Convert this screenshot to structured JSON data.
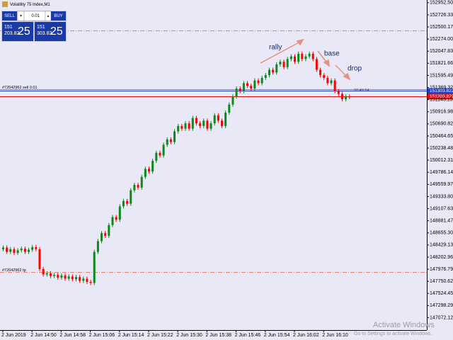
{
  "chart_data": {
    "type": "candlestick",
    "title": "Volatility 75 Index,M1",
    "categories": [
      "2 Jun 2019",
      null,
      null,
      null,
      null,
      null,
      null,
      null,
      "2 Jun 14:50",
      null,
      null,
      null,
      null,
      null,
      null,
      null,
      "2 Jun 14:58",
      null,
      null,
      null,
      null,
      null,
      null,
      null,
      "2 Jun 15:06",
      null,
      null,
      null,
      null,
      null,
      null,
      null,
      "2 Jun 15:14",
      null,
      null,
      null,
      null,
      null,
      null,
      null,
      "2 Jun 15:22",
      null,
      null,
      null,
      null,
      null,
      null,
      null,
      "2 Jun 15:30",
      null,
      null,
      null,
      null,
      null,
      null,
      null,
      "2 Jun 15:38",
      null,
      null,
      null,
      null,
      null,
      null,
      null,
      "2 Jun 15:46",
      null,
      null,
      null,
      null,
      null,
      null,
      null,
      "2 Jun 15:54",
      null,
      null,
      null,
      null,
      null,
      null,
      null,
      "2 Jun 16:02",
      null,
      null,
      null,
      null,
      null,
      null,
      null,
      "2 Jun 16:10",
      null,
      null,
      null,
      null,
      null,
      null,
      null
    ],
    "open": [
      148350,
      148380,
      148300,
      148350,
      148280,
      148330,
      148360,
      148300,
      148340,
      148390,
      148350,
      147980,
      147880,
      147900,
      147850,
      147870,
      147820,
      147860,
      147800,
      147840,
      147790,
      147830,
      147760,
      147800,
      147740,
      147720,
      148300,
      148500,
      148650,
      148600,
      148800,
      148950,
      148900,
      149150,
      149250,
      149200,
      149450,
      149550,
      149500,
      149700,
      149850,
      149800,
      150000,
      150150,
      150100,
      150300,
      150400,
      150350,
      150550,
      150650,
      150600,
      150700,
      150600,
      150800,
      150700,
      150650,
      150750,
      150600,
      150700,
      150850,
      150750,
      150650,
      150900,
      151050,
      151200,
      151350,
      151300,
      151450,
      151400,
      151350,
      151500,
      151450,
      151550,
      151600,
      151700,
      151650,
      151800,
      151850,
      151750,
      151900,
      151950,
      151850,
      152000,
      151900,
      151950,
      152000,
      151900,
      151700,
      151600,
      151550,
      151450,
      151500,
      151300,
      151250,
      151150,
      151200
    ],
    "high": [
      148420,
      148420,
      148390,
      148390,
      148370,
      148400,
      148400,
      148380,
      148430,
      148430,
      148390,
      148020,
      147940,
      147940,
      147910,
      147910,
      147900,
      147900,
      147880,
      147880,
      147870,
      147870,
      147840,
      147840,
      147780,
      148340,
      148540,
      148690,
      148690,
      148840,
      148990,
      148990,
      149190,
      149290,
      149290,
      149490,
      149590,
      149590,
      149740,
      149890,
      149890,
      150040,
      150190,
      150190,
      150340,
      150440,
      150440,
      150590,
      150690,
      150690,
      150740,
      150740,
      150840,
      150840,
      150740,
      150790,
      150790,
      150740,
      150890,
      150890,
      150790,
      150940,
      151090,
      151240,
      151390,
      151390,
      151490,
      151490,
      151440,
      151540,
      151540,
      151590,
      151640,
      151740,
      151740,
      151840,
      151890,
      151890,
      151940,
      151990,
      151990,
      152040,
      152040,
      151990,
      152040,
      152040,
      151940,
      151740,
      151640,
      151590,
      151540,
      151540,
      151340,
      151290,
      151240,
      151240
    ],
    "low": [
      148310,
      148260,
      148260,
      148240,
      148240,
      148290,
      148260,
      148260,
      148300,
      148310,
      147940,
      147840,
      147840,
      147810,
      147810,
      147780,
      147780,
      147760,
      147760,
      147750,
      147750,
      147720,
      147720,
      147700,
      147680,
      147680,
      148260,
      148460,
      148560,
      148560,
      148760,
      148860,
      148860,
      149110,
      149160,
      149160,
      149410,
      149460,
      149460,
      149660,
      149760,
      149760,
      149960,
      150060,
      150060,
      150260,
      150310,
      150310,
      150510,
      150560,
      150560,
      150560,
      150560,
      150660,
      150610,
      150610,
      150560,
      150560,
      150660,
      150710,
      150610,
      150610,
      150860,
      151010,
      151160,
      151260,
      151260,
      151360,
      151310,
      151310,
      151410,
      151410,
      151510,
      151560,
      151610,
      151610,
      151760,
      151710,
      151710,
      151860,
      151810,
      151810,
      151860,
      151860,
      151910,
      151860,
      151660,
      151560,
      151510,
      151410,
      151410,
      151260,
      151210,
      151110,
      151110,
      151150
    ],
    "close": [
      148380,
      148300,
      148350,
      148280,
      148330,
      148360,
      148300,
      148340,
      148390,
      148350,
      147980,
      147880,
      147900,
      147850,
      147870,
      147820,
      147860,
      147800,
      147840,
      147790,
      147830,
      147760,
      147800,
      147740,
      147720,
      148300,
      148500,
      148650,
      148600,
      148800,
      148950,
      148900,
      149150,
      149250,
      149200,
      149450,
      149550,
      149500,
      149700,
      149850,
      149800,
      150000,
      150150,
      150100,
      150300,
      150400,
      150350,
      150550,
      150650,
      150600,
      150700,
      150600,
      150800,
      150700,
      150650,
      150750,
      150600,
      150700,
      150850,
      150750,
      150650,
      150900,
      151050,
      151200,
      151350,
      151300,
      151450,
      151400,
      151350,
      151500,
      151450,
      151550,
      151600,
      151700,
      151650,
      151800,
      151850,
      151750,
      151900,
      151950,
      151850,
      152000,
      151900,
      151950,
      152000,
      151900,
      151700,
      151600,
      151550,
      151450,
      151500,
      151300,
      151250,
      151150,
      151200,
      151190
    ],
    "up_color": "#0b8a1b",
    "down_color": "#ff0000",
    "ylim": [
      146840,
      153003
    ],
    "yticks": [
      152952.5078,
      152726.3391,
      152500.1704,
      152274.0017,
      {
        "value": 152047.833,
        "label": "152047.8330"
      },
      151821.6643,
      151595.4956,
      151369.3269,
      151143.1582,
      150916.9895,
      150690.8208,
      150464.6521,
      150238.4834,
      150012.3147,
      {
        "value": 149786.146,
        "label": "149786.1460"
      },
      149559.9773,
      149333.8086,
      149107.6399,
      148881.4712,
      148655.3025,
      148429.1338,
      148202.9651,
      147976.7964,
      147750.6277,
      {
        "value": 147524.459,
        "label": "147524.4590"
      },
      147298.2903,
      147072.1216
    ],
    "levels": [
      {
        "value": 152434,
        "color": "#e8604c",
        "dashed": true
      },
      {
        "value": 151330,
        "color": "#5a5a90",
        "label": "#72042962 sell 0.01"
      },
      {
        "value": 147925,
        "color": "#e8604c",
        "dashed": true,
        "label": "#72042962 tp"
      }
    ],
    "price_boxes": [
      {
        "value": 151303.8225,
        "color": "#1f3fbf"
      },
      {
        "value": 151203.8225,
        "color": "#e01010"
      }
    ],
    "countdown": "00:49:24",
    "annotations": [
      "rally",
      "base",
      "drop"
    ]
  },
  "trade_panel": {
    "sell": "SELL",
    "buy": "BUY",
    "lot": "0.01",
    "bid": {
      "big": "151",
      "small": "203.82",
      "pips": "25"
    },
    "ask": {
      "big": "151",
      "small": "303.82",
      "pips": "25"
    }
  },
  "watermark": {
    "title": "Activate Windows",
    "subtitle": "Go to Settings to activate Windows."
  }
}
